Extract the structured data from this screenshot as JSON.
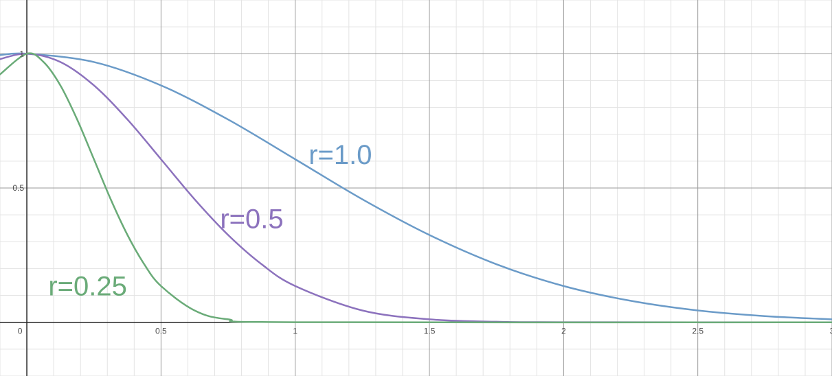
{
  "chart_data": {
    "type": "line",
    "title": "",
    "xlabel": "",
    "ylabel": "",
    "xlim": [
      -0.1,
      3.0
    ],
    "ylim": [
      -0.2,
      1.2
    ],
    "grid": true,
    "x_ticks": [
      0,
      0.5,
      1,
      1.5,
      2,
      2.5,
      3
    ],
    "x_tick_labels": [
      "0",
      "0.5",
      "1",
      "1.5",
      "2",
      "2.5",
      "3"
    ],
    "y_ticks": [
      0.5,
      1
    ],
    "y_tick_labels": [
      "0.5",
      "1"
    ],
    "series": [
      {
        "name": "r=1.0",
        "color": "#6b9bc8",
        "x": [
          -0.1,
          0,
          0.25,
          0.5,
          0.75,
          1.0,
          1.25,
          1.5,
          1.75,
          2.0,
          2.25,
          2.5,
          2.75,
          3.0
        ],
        "values": [
          0.995,
          1.0,
          0.969,
          0.882,
          0.755,
          0.607,
          0.458,
          0.325,
          0.216,
          0.135,
          0.08,
          0.044,
          0.023,
          0.011
        ]
      },
      {
        "name": "r=0.5",
        "color": "#8c72bd",
        "x": [
          -0.1,
          0,
          0.125,
          0.25,
          0.375,
          0.5,
          0.625,
          0.75,
          0.875,
          1.0,
          1.25,
          1.5,
          1.75,
          2.0,
          3.0
        ],
        "values": [
          0.98,
          1.0,
          0.969,
          0.882,
          0.755,
          0.607,
          0.458,
          0.325,
          0.216,
          0.135,
          0.044,
          0.011,
          0.002,
          0.0003,
          0.0
        ]
      },
      {
        "name": "r=0.25",
        "color": "#6aab78",
        "x": [
          -0.1,
          0,
          0.0625,
          0.125,
          0.1875,
          0.25,
          0.3125,
          0.375,
          0.4375,
          0.5,
          0.625,
          0.75,
          1.0,
          3.0
        ],
        "values": [
          0.923,
          1.0,
          0.969,
          0.882,
          0.755,
          0.607,
          0.458,
          0.325,
          0.216,
          0.135,
          0.044,
          0.011,
          0.0003,
          0.0
        ]
      }
    ],
    "annotations": [
      {
        "text": "r=1.0",
        "x": 1.05,
        "y": 0.59,
        "color": "#6b9bc8"
      },
      {
        "text": "r=0.5",
        "x": 0.72,
        "y": 0.35,
        "color": "#8c72bd"
      },
      {
        "text": "r=0.25",
        "x": 0.08,
        "y": 0.1,
        "color": "#6aab78"
      }
    ]
  }
}
